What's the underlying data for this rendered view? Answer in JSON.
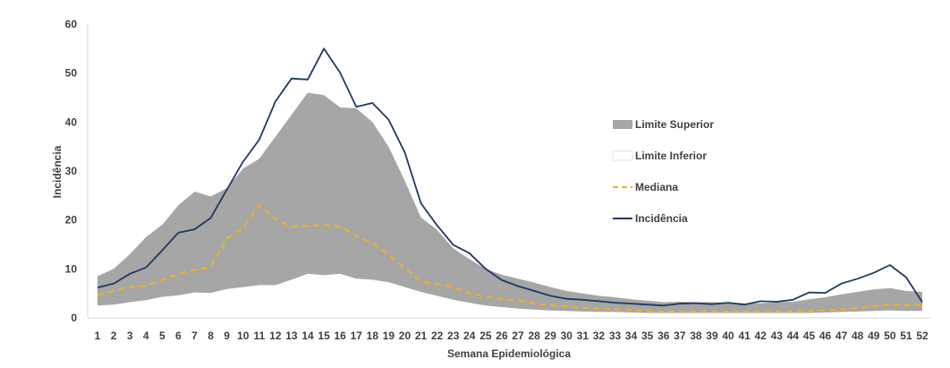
{
  "chart_data": {
    "type": "area",
    "title": "",
    "xlabel": "Semana Epidemiológica",
    "ylabel": "Incidência",
    "ylim": [
      0,
      60
    ],
    "yticks": [
      0,
      10,
      20,
      30,
      40,
      50,
      60
    ],
    "grid": false,
    "legend_position": "right",
    "categories": [
      "1",
      "2",
      "3",
      "4",
      "5",
      "6",
      "7",
      "8",
      "9",
      "10",
      "11",
      "12",
      "13",
      "14",
      "15",
      "16",
      "17",
      "18",
      "19",
      "20",
      "21",
      "22",
      "23",
      "24",
      "25",
      "26",
      "27",
      "28",
      "29",
      "30",
      "31",
      "32",
      "33",
      "34",
      "35",
      "36",
      "37",
      "38",
      "39",
      "40",
      "41",
      "42",
      "43",
      "44",
      "45",
      "46",
      "47",
      "48",
      "49",
      "50",
      "51",
      "52"
    ],
    "series": [
      {
        "name": "Limite Superior",
        "type": "area",
        "color": "#a6a6a6",
        "values": [
          8.5,
          10,
          13,
          16.5,
          19,
          23,
          25.8,
          24.8,
          26.5,
          30.5,
          32.5,
          37,
          41.5,
          46,
          45.5,
          43,
          42.8,
          40,
          35,
          28,
          20.5,
          18,
          14.2,
          12,
          10,
          8.8,
          8,
          7.2,
          6.3,
          5.5,
          5,
          4.5,
          4.2,
          3.8,
          3.5,
          3.2,
          3.3,
          3.2,
          3.2,
          3.1,
          3,
          3,
          3.2,
          3.3,
          3.8,
          4.2,
          4.8,
          5.3,
          5.8,
          6.1,
          5.5,
          5.3
        ]
      },
      {
        "name": "Limite Inferior",
        "type": "area",
        "color": "#ffffff",
        "values": [
          2.5,
          2.7,
          3.2,
          3.6,
          4.3,
          4.6,
          5.2,
          5.1,
          5.9,
          6.3,
          6.7,
          6.7,
          7.8,
          9,
          8.7,
          9,
          8,
          7.8,
          7.3,
          6.3,
          5.3,
          4.5,
          3.7,
          3.1,
          2.5,
          2.2,
          1.9,
          1.7,
          1.5,
          1.4,
          1.3,
          1.2,
          1.2,
          1.1,
          1,
          1,
          1,
          1,
          1,
          1,
          1,
          1,
          1,
          1,
          1,
          1.1,
          1.2,
          1.3,
          1.4,
          1.5,
          1.4,
          1.4
        ]
      },
      {
        "name": "Mediana",
        "type": "line",
        "color": "#f0b323",
        "dashed": true,
        "values": [
          4.6,
          5.5,
          6.3,
          6.5,
          7.8,
          8.9,
          9.8,
          10.3,
          16.2,
          18.4,
          23,
          20.2,
          18.6,
          18.8,
          19,
          18.6,
          16.8,
          15.3,
          12.9,
          10.2,
          7.4,
          6.9,
          6.2,
          5,
          4.3,
          3.9,
          3.5,
          3,
          2.6,
          2.3,
          2.1,
          1.9,
          1.8,
          1.6,
          1.4,
          1.3,
          1.3,
          1.3,
          1.3,
          1.3,
          1.3,
          1.3,
          1.3,
          1.3,
          1.4,
          1.5,
          1.8,
          2,
          2.4,
          2.8,
          2.6,
          2.7
        ]
      },
      {
        "name": "Incidência",
        "type": "line",
        "color": "#1f3864",
        "dashed": false,
        "values": [
          6.2,
          7,
          9,
          10.3,
          13.8,
          17.4,
          18.1,
          20.4,
          26.2,
          31.9,
          36.4,
          44.2,
          48.9,
          48.7,
          55,
          50.1,
          43.1,
          43.9,
          40.5,
          33.8,
          23.4,
          18.9,
          14.9,
          13.2,
          10,
          7.7,
          6.5,
          5.5,
          4.5,
          3.9,
          3.7,
          3.4,
          3.1,
          2.9,
          2.7,
          2.5,
          2.9,
          3,
          2.8,
          3.1,
          2.7,
          3.4,
          3.3,
          3.7,
          5.2,
          5.1,
          7,
          8,
          9.2,
          10.8,
          8.3,
          3.2
        ]
      }
    ]
  }
}
